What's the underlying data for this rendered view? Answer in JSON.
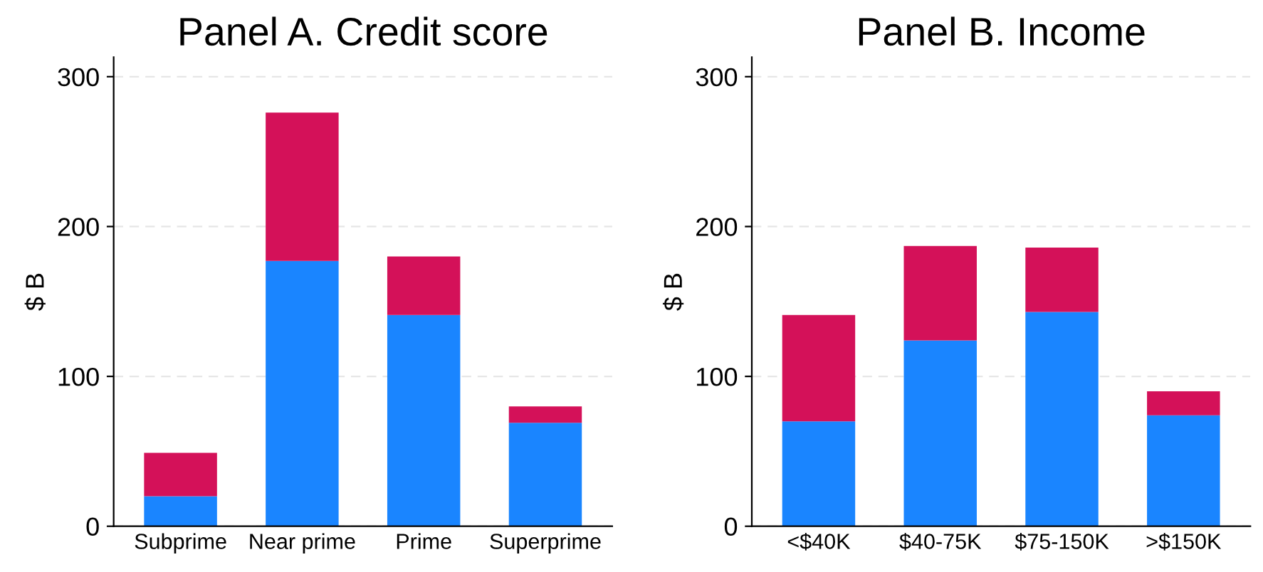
{
  "chart_data": [
    {
      "type": "bar",
      "title": "Panel A. Credit score",
      "ylabel": "$ B",
      "categories": [
        "Subprime",
        "Near prime",
        "Prime",
        "Superprime"
      ],
      "stacked": true,
      "ylim": [
        0,
        313
      ],
      "yticks": [
        0,
        100,
        200,
        300
      ],
      "grid": "y",
      "series": [
        {
          "color": "#1a85ff",
          "values": [
            20,
            177,
            141,
            69
          ]
        },
        {
          "color": "#d41159",
          "values": [
            29,
            99,
            39,
            11
          ]
        }
      ]
    },
    {
      "type": "bar",
      "title": "Panel B. Income",
      "ylabel": "$ B",
      "categories": [
        "<$40K",
        "$40-75K",
        "$75-150K",
        ">$150K"
      ],
      "stacked": true,
      "ylim": [
        0,
        313
      ],
      "yticks": [
        0,
        100,
        200,
        300
      ],
      "grid": "y",
      "series": [
        {
          "color": "#1a85ff",
          "values": [
            70,
            124,
            143,
            74
          ]
        },
        {
          "color": "#d41159",
          "values": [
            71,
            63,
            43,
            16
          ]
        }
      ]
    }
  ]
}
